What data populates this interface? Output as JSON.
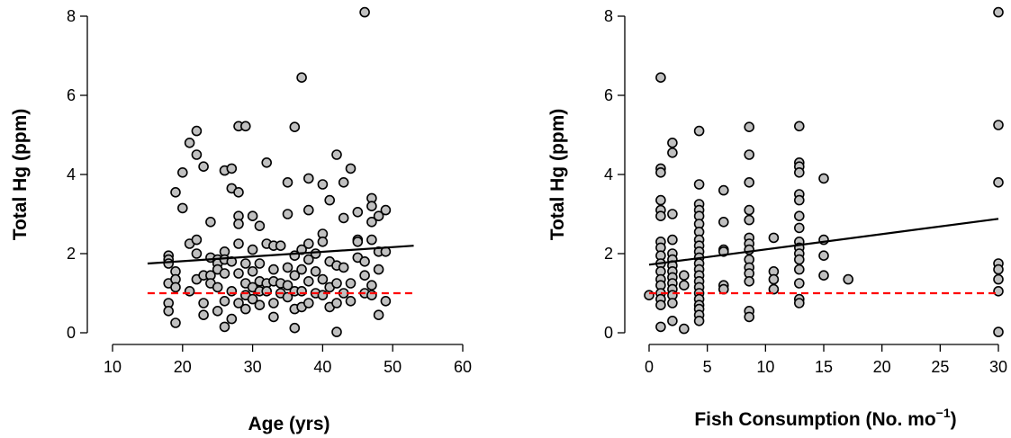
{
  "chart_data": [
    {
      "type": "scatter",
      "xlabel": "Age (yrs)",
      "ylabel": "Total Hg (ppm)",
      "xlim": [
        10,
        60
      ],
      "ylim": [
        0,
        8
      ],
      "xticks": [
        10,
        20,
        30,
        40,
        50,
        60
      ],
      "yticks": [
        0,
        2,
        4,
        6,
        8
      ],
      "grid": false,
      "colors": {
        "point_fill": "#c0c0c0",
        "point_stroke": "#000000",
        "trend": "#000000",
        "reference": "#ff0000"
      },
      "points": [
        [
          18,
          1.95
        ],
        [
          18,
          1.85
        ],
        [
          18,
          1.75
        ],
        [
          18,
          1.25
        ],
        [
          18,
          0.75
        ],
        [
          18,
          0.55
        ],
        [
          19,
          3.55
        ],
        [
          19,
          1.55
        ],
        [
          19,
          1.35
        ],
        [
          19,
          1.15
        ],
        [
          19,
          0.25
        ],
        [
          20,
          4.05
        ],
        [
          20,
          3.15
        ],
        [
          21,
          4.8
        ],
        [
          21,
          2.25
        ],
        [
          21,
          1.05
        ],
        [
          22,
          5.1
        ],
        [
          22,
          4.5
        ],
        [
          22,
          2.35
        ],
        [
          22,
          2.0
        ],
        [
          22,
          1.35
        ],
        [
          23,
          4.2
        ],
        [
          23,
          1.45
        ],
        [
          23,
          0.75
        ],
        [
          23,
          0.45
        ],
        [
          24,
          2.8
        ],
        [
          24,
          1.9
        ],
        [
          24,
          1.45
        ],
        [
          24,
          1.25
        ],
        [
          25,
          1.85
        ],
        [
          25,
          1.75
        ],
        [
          25,
          1.6
        ],
        [
          25,
          1.15
        ],
        [
          25,
          0.55
        ],
        [
          26,
          4.1
        ],
        [
          26,
          2.05
        ],
        [
          26,
          1.85
        ],
        [
          26,
          1.5
        ],
        [
          26,
          0.8
        ],
        [
          26,
          0.15
        ],
        [
          27,
          4.15
        ],
        [
          27,
          3.65
        ],
        [
          27,
          1.8
        ],
        [
          27,
          1.05
        ],
        [
          27,
          0.35
        ],
        [
          28,
          5.22
        ],
        [
          28,
          3.55
        ],
        [
          28,
          2.95
        ],
        [
          28,
          2.75
        ],
        [
          28,
          2.25
        ],
        [
          28,
          1.5
        ],
        [
          28,
          0.75
        ],
        [
          29,
          5.22
        ],
        [
          29,
          1.75
        ],
        [
          29,
          1.25
        ],
        [
          29,
          0.95
        ],
        [
          29,
          0.6
        ],
        [
          30,
          2.95
        ],
        [
          30,
          2.1
        ],
        [
          30,
          1.55
        ],
        [
          30,
          1.15
        ],
        [
          30,
          0.85
        ],
        [
          31,
          2.7
        ],
        [
          31,
          1.75
        ],
        [
          31,
          1.3
        ],
        [
          31,
          1.05
        ],
        [
          31,
          0.7
        ],
        [
          32,
          4.3
        ],
        [
          32,
          2.25
        ],
        [
          32,
          1.25
        ],
        [
          32,
          1.05
        ],
        [
          33,
          2.2
        ],
        [
          33,
          1.6
        ],
        [
          33,
          1.3
        ],
        [
          33,
          0.75
        ],
        [
          33,
          0.4
        ],
        [
          34,
          2.2
        ],
        [
          34,
          1.25
        ],
        [
          34,
          1.0
        ],
        [
          35,
          3.8
        ],
        [
          35,
          3.0
        ],
        [
          35,
          1.65
        ],
        [
          35,
          1.2
        ],
        [
          35,
          0.9
        ],
        [
          36,
          5.2
        ],
        [
          36,
          1.95
        ],
        [
          36,
          1.45
        ],
        [
          36,
          1.05
        ],
        [
          36,
          0.6
        ],
        [
          36,
          0.12
        ],
        [
          37,
          6.45
        ],
        [
          37,
          2.1
        ],
        [
          37,
          1.6
        ],
        [
          37,
          1.05
        ],
        [
          37,
          0.65
        ],
        [
          38,
          3.9
        ],
        [
          38,
          3.1
        ],
        [
          38,
          2.25
        ],
        [
          38,
          1.85
        ],
        [
          38,
          1.3
        ],
        [
          38,
          0.75
        ],
        [
          39,
          2.0
        ],
        [
          39,
          1.55
        ],
        [
          39,
          1.0
        ],
        [
          40,
          3.75
        ],
        [
          40,
          2.5
        ],
        [
          40,
          2.3
        ],
        [
          40,
          1.35
        ],
        [
          40,
          0.95
        ],
        [
          41,
          3.35
        ],
        [
          41,
          1.8
        ],
        [
          41,
          1.15
        ],
        [
          41,
          0.65
        ],
        [
          42,
          4.5
        ],
        [
          42,
          1.7
        ],
        [
          42,
          1.25
        ],
        [
          42,
          0.75
        ],
        [
          42,
          0.02
        ],
        [
          43,
          3.8
        ],
        [
          43,
          2.9
        ],
        [
          43,
          1.65
        ],
        [
          43,
          1.0
        ],
        [
          44,
          4.15
        ],
        [
          44,
          1.25
        ],
        [
          44,
          0.8
        ],
        [
          45,
          3.05
        ],
        [
          45,
          2.35
        ],
        [
          45,
          2.3
        ],
        [
          45,
          1.9
        ],
        [
          46,
          8.1
        ],
        [
          46,
          1.8
        ],
        [
          46,
          1.45
        ],
        [
          46,
          1.0
        ],
        [
          47,
          3.4
        ],
        [
          47,
          3.2
        ],
        [
          47,
          2.8
        ],
        [
          47,
          2.35
        ],
        [
          47,
          1.2
        ],
        [
          47,
          0.95
        ],
        [
          48,
          2.95
        ],
        [
          48,
          2.05
        ],
        [
          48,
          1.6
        ],
        [
          48,
          0.45
        ],
        [
          49,
          3.1
        ],
        [
          49,
          2.05
        ],
        [
          49,
          0.8
        ]
      ],
      "lines": [
        {
          "type": "regression",
          "x": [
            15,
            53
          ],
          "y": [
            1.75,
            2.2
          ]
        },
        {
          "type": "reference",
          "x": [
            15,
            53
          ],
          "y": [
            1.0,
            1.0
          ],
          "style": "dashed"
        }
      ]
    },
    {
      "type": "scatter",
      "xlabel": "Fish Consumption (No. mo",
      "xlabel_sup": "−1",
      "xlabel_end": ")",
      "ylabel": "Total Hg (ppm)",
      "xlim": [
        0,
        30
      ],
      "ylim": [
        0,
        8
      ],
      "xticks": [
        0,
        5,
        10,
        15,
        20,
        25,
        30
      ],
      "yticks": [
        0,
        2,
        4,
        6,
        8
      ],
      "grid": false,
      "colors": {
        "point_fill": "#c0c0c0",
        "point_stroke": "#000000",
        "trend": "#000000",
        "reference": "#ff0000"
      },
      "points": [
        [
          0,
          0.95
        ],
        [
          1,
          6.45
        ],
        [
          1,
          4.15
        ],
        [
          1,
          4.05
        ],
        [
          1,
          3.35
        ],
        [
          1,
          3.1
        ],
        [
          1,
          2.95
        ],
        [
          1,
          2.3
        ],
        [
          1,
          2.15
        ],
        [
          1,
          1.95
        ],
        [
          1,
          1.75
        ],
        [
          1,
          1.55
        ],
        [
          1,
          1.35
        ],
        [
          1,
          1.2
        ],
        [
          1,
          1.0
        ],
        [
          1,
          0.85
        ],
        [
          1,
          0.7
        ],
        [
          1,
          0.15
        ],
        [
          2,
          4.8
        ],
        [
          2,
          4.55
        ],
        [
          2,
          3.0
        ],
        [
          2,
          2.35
        ],
        [
          2,
          2.0
        ],
        [
          2,
          1.85
        ],
        [
          2,
          1.7
        ],
        [
          2,
          1.55
        ],
        [
          2,
          1.4
        ],
        [
          2,
          1.25
        ],
        [
          2,
          1.1
        ],
        [
          2,
          0.95
        ],
        [
          2,
          0.75
        ],
        [
          2,
          0.3
        ],
        [
          3,
          1.45
        ],
        [
          3,
          1.2
        ],
        [
          3,
          0.1
        ],
        [
          4.3,
          5.1
        ],
        [
          4.3,
          3.75
        ],
        [
          4.3,
          3.25
        ],
        [
          4.3,
          3.1
        ],
        [
          4.3,
          2.95
        ],
        [
          4.3,
          2.75
        ],
        [
          4.3,
          2.55
        ],
        [
          4.3,
          2.35
        ],
        [
          4.3,
          2.2
        ],
        [
          4.3,
          2.05
        ],
        [
          4.3,
          1.9
        ],
        [
          4.3,
          1.75
        ],
        [
          4.3,
          1.6
        ],
        [
          4.3,
          1.45
        ],
        [
          4.3,
          1.3
        ],
        [
          4.3,
          1.15
        ],
        [
          4.3,
          1.0
        ],
        [
          4.3,
          0.85
        ],
        [
          4.3,
          0.7
        ],
        [
          4.3,
          0.6
        ],
        [
          4.3,
          0.45
        ],
        [
          4.3,
          0.3
        ],
        [
          6.4,
          3.6
        ],
        [
          6.4,
          2.8
        ],
        [
          6.4,
          2.1
        ],
        [
          6.4,
          2.05
        ],
        [
          6.4,
          1.2
        ],
        [
          6.4,
          1.1
        ],
        [
          8.6,
          5.2
        ],
        [
          8.6,
          4.5
        ],
        [
          8.6,
          3.8
        ],
        [
          8.6,
          3.1
        ],
        [
          8.6,
          2.85
        ],
        [
          8.6,
          2.4
        ],
        [
          8.6,
          2.25
        ],
        [
          8.6,
          2.1
        ],
        [
          8.6,
          1.85
        ],
        [
          8.6,
          1.65
        ],
        [
          8.6,
          1.5
        ],
        [
          8.6,
          1.3
        ],
        [
          8.6,
          0.55
        ],
        [
          8.6,
          0.4
        ],
        [
          10.7,
          2.4
        ],
        [
          10.7,
          1.55
        ],
        [
          10.7,
          1.35
        ],
        [
          10.7,
          1.1
        ],
        [
          12.9,
          5.22
        ],
        [
          12.9,
          4.3
        ],
        [
          12.9,
          4.2
        ],
        [
          12.9,
          4.05
        ],
        [
          12.9,
          3.5
        ],
        [
          12.9,
          3.35
        ],
        [
          12.9,
          2.95
        ],
        [
          12.9,
          2.65
        ],
        [
          12.9,
          2.3
        ],
        [
          12.9,
          2.15
        ],
        [
          12.9,
          2.0
        ],
        [
          12.9,
          1.85
        ],
        [
          12.9,
          1.6
        ],
        [
          12.9,
          1.25
        ],
        [
          12.9,
          0.85
        ],
        [
          12.9,
          0.75
        ],
        [
          15,
          3.9
        ],
        [
          15,
          2.35
        ],
        [
          15,
          1.95
        ],
        [
          15,
          1.45
        ],
        [
          17.1,
          1.35
        ],
        [
          30,
          8.1
        ],
        [
          30,
          5.25
        ],
        [
          30,
          3.8
        ],
        [
          30,
          1.75
        ],
        [
          30,
          1.6
        ],
        [
          30,
          1.35
        ],
        [
          30,
          1.05
        ],
        [
          30,
          0.02
        ]
      ],
      "lines": [
        {
          "type": "regression",
          "x": [
            0,
            30
          ],
          "y": [
            1.72,
            2.88
          ]
        },
        {
          "type": "reference",
          "x": [
            0,
            30
          ],
          "y": [
            1.0,
            1.0
          ],
          "style": "dashed"
        }
      ]
    }
  ]
}
